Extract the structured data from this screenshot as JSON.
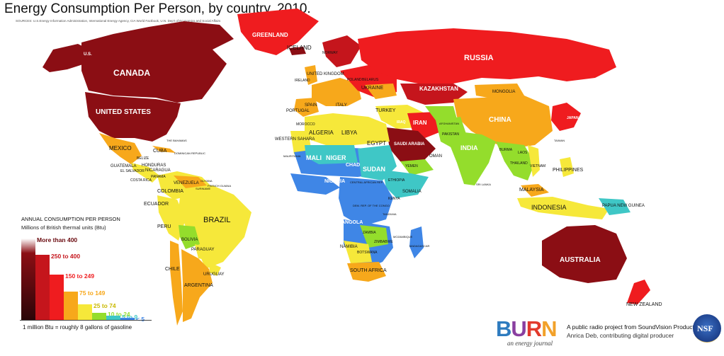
{
  "title": "Energy Consumption Per Person, by country, 2010.",
  "sources": "SOURCES: U.S.Energy Information Administration, International Energy Agency, CIA World Factbook, U.N. Dep't of Economics and Social Affairs",
  "colors": {
    "more_than_400": "#8b0e14",
    "c250_400": "#c5151c",
    "c150_249": "#ef1c1f",
    "c75_149": "#f7a81b",
    "c25_74": "#f6e83a",
    "c10_24": "#94dd2c",
    "c5_9": "#3fc7c6",
    "lt5": "#3f86e6"
  },
  "legend": {
    "title": "ANNUAL CONSUMPTION PER PERSON",
    "subtitle": "Millions of British thermal units (Btu)",
    "items": [
      {
        "label": "More than 400",
        "color": "#8b0e14",
        "level": 1.0
      },
      {
        "label": "250 to 400",
        "color": "#c5151c",
        "level": 0.8
      },
      {
        "label": "150 to 249",
        "color": "#ef1c1f",
        "level": 0.56
      },
      {
        "label": "75 to 149",
        "color": "#f7a81b",
        "level": 0.35
      },
      {
        "label": "25 to 74",
        "color": "#f6e83a",
        "level": 0.19
      },
      {
        "label": "10 to 24",
        "color": "#94dd2c",
        "level": 0.09
      },
      {
        "label": "5 to 9",
        "color": "#3fc7c6",
        "level": 0.05
      },
      {
        "label": "< 5",
        "color": "#3f86e6",
        "level": 0.02
      }
    ],
    "note": "1 million Btu = roughly 8 gallons of gasoline"
  },
  "labels": {
    "canada": "CANADA",
    "us": "UNITED STATES",
    "us_alaska": "U.S.",
    "greenland": "GREENLAND",
    "iceland": "ICELAND",
    "russia": "RUSSIA",
    "kazakhstan": "KAZAKHSTAN",
    "mongolia": "MONGOLIA",
    "china": "CHINA",
    "india": "INDIA",
    "mexico": "MEXICO",
    "cuba": "CUBA",
    "bahamas": "THE BAHAMAS",
    "dominican": "DOMINICAN REPUBLIC",
    "belize": "BELIZE",
    "honduras": "HONDURAS",
    "guatemala": "GUATEMALA",
    "elsalvador": "EL SALVADOR",
    "nicaragua": "NICARAGUA",
    "costarica": "COSTA RICA",
    "panama": "PANAMA",
    "venezuela": "VENEZUELA",
    "colombia": "COLOMBIA",
    "ecuador": "ECUADOR",
    "peru": "PERU",
    "brazil": "BRAZIL",
    "bolivia": "BOLIVIA",
    "paraguay": "PARAGUAY",
    "chile": "CHILE",
    "uruguay": "URUGUAY",
    "argentina": "ARGENTINA",
    "guyana": "GUYANA",
    "frenchguiana": "FRENCH GUIANA",
    "suriname": "SURINAME",
    "norway": "NORWAY",
    "uk": "UNITED KINGDOM",
    "ireland": "IRELAND",
    "poland": "POLAND",
    "belarus": "BELARUS",
    "ukraine": "UKRAINE",
    "spain": "SPAIN",
    "portugal": "PORTUGAL",
    "italy": "ITALY",
    "turkey": "TURKEY",
    "morocco": "MOROCCO",
    "algeria": "ALGERIA",
    "libya": "LIBYA",
    "egypt": "EGYPT",
    "westernsahara": "WESTERN SAHARA",
    "mauritania": "MAURITANIA",
    "mali": "MALI",
    "niger": "NIGER",
    "chad": "CHAD",
    "sudan": "SUDAN",
    "nigeria": "NIGERIA",
    "ethiopia": "ETHIOPIA",
    "somalia": "SOMALIA",
    "kenya": "KENYA",
    "car": "CENTRAL AFRICAN REP.",
    "drc": "DEM. REP. OF THE CONGO",
    "angola": "ANGOLA",
    "zambia": "ZAMBIA",
    "zimbabwe": "ZIMBABWE",
    "namibia": "NAMIBIA",
    "botswana": "BOTSWANA",
    "southafrica": "SOUTH AFRICA",
    "madagascar": "MADAGASCAR",
    "mozambique": "MOZAMBIQUE",
    "tanzania": "TANZANIA",
    "yemen": "YEMEN",
    "oman": "OMAN",
    "saudi": "SAUDI ARABIA",
    "iran": "IRAN",
    "iraq": "IRAQ",
    "afghanistan": "AFGHANISTAN",
    "pakistan": "PAKISTAN",
    "burma": "BURMA",
    "laos": "LAOS",
    "thailand": "THAILAND",
    "vietnam": "VIETNAM",
    "philippines": "PHILIPPINES",
    "malaysia": "MALAYSIA",
    "indonesia": "INDONESIA",
    "papua": "PAPUA NEW GUINEA",
    "australia": "AUSTRALIA",
    "newzealand": "NEW ZEALAND",
    "srilanka": "SRI LANKA",
    "taiwan": "TAIWAN",
    "japan": "JAPAN"
  },
  "footer": {
    "brand": [
      "B",
      "U",
      "R",
      "N"
    ],
    "brand_colors": [
      "#2e7bbf",
      "#8a3fa0",
      "#e23a2c",
      "#f2a12a"
    ],
    "tagline": "an energy journal",
    "credit_line1": "A public radio project from SoundVision Productions",
    "credit_line2": "Anrica Deb, contributing digital producer",
    "nsf": "NSF"
  }
}
